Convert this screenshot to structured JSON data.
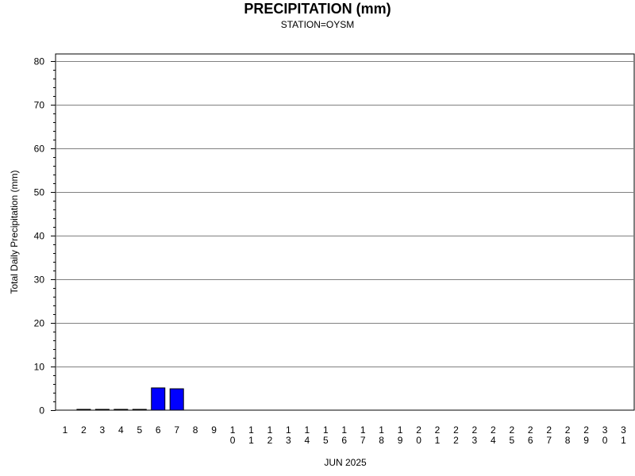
{
  "chart_data": {
    "type": "bar",
    "title": "PRECIPITATION (mm)",
    "subtitle": "STATION=OYSM",
    "ylabel": "Total Daily Precipitation (mm)",
    "xlabel": "JUN 2025",
    "ylim": [
      0,
      80
    ],
    "yticks": [
      0,
      10,
      20,
      30,
      40,
      50,
      60,
      70,
      80
    ],
    "grid": true,
    "bar_color": "#0000ff",
    "categories": [
      "1",
      "2",
      "3",
      "4",
      "5",
      "6",
      "7",
      "8",
      "9",
      "10",
      "11",
      "12",
      "13",
      "14",
      "15",
      "16",
      "17",
      "18",
      "19",
      "20",
      "21",
      "22",
      "23",
      "24",
      "25",
      "26",
      "27",
      "28",
      "29",
      "30",
      "31"
    ],
    "values": [
      null,
      0.1,
      0.1,
      0.1,
      0.1,
      5.1,
      4.9,
      null,
      null,
      null,
      null,
      null,
      null,
      null,
      null,
      null,
      null,
      null,
      null,
      null,
      null,
      null,
      null,
      null,
      null,
      null,
      null,
      null,
      null,
      null,
      null
    ]
  }
}
